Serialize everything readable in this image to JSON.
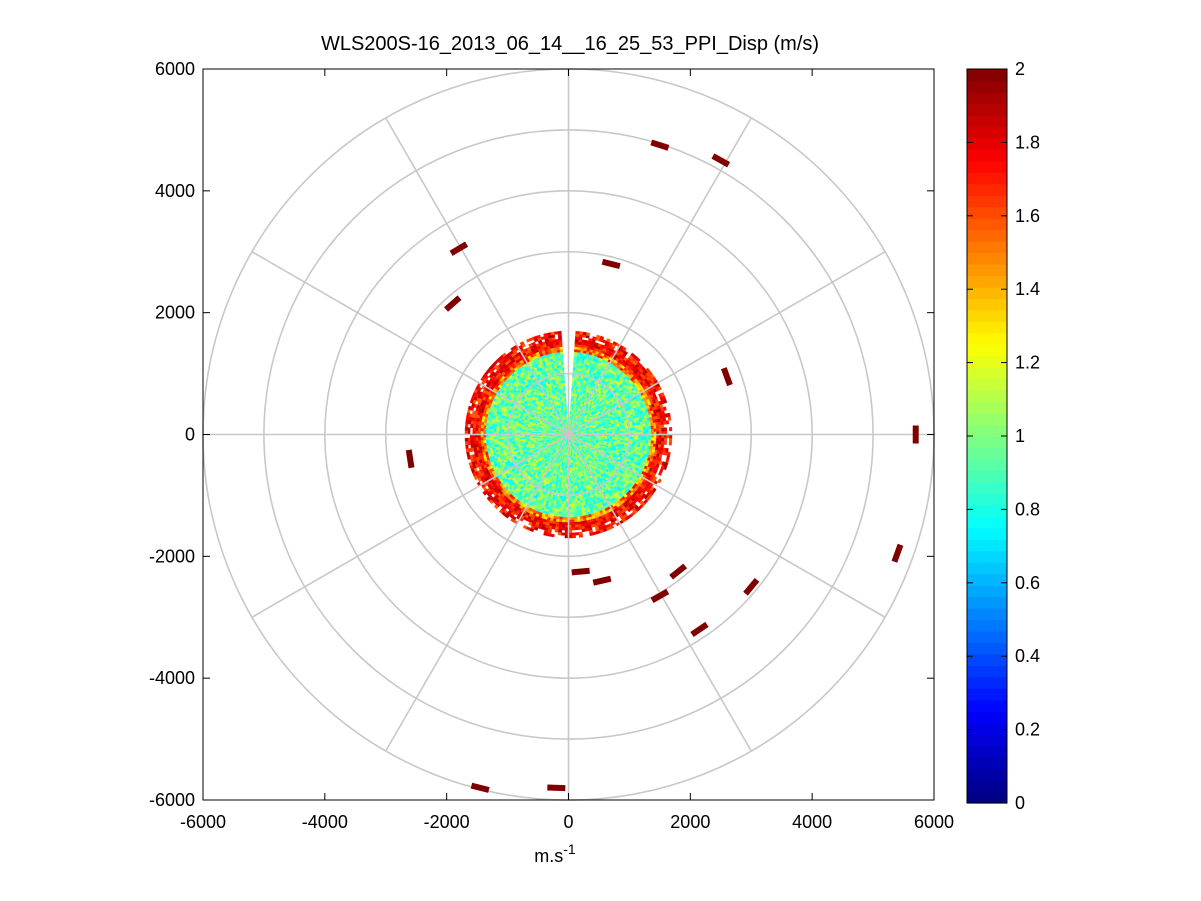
{
  "chart_data": {
    "type": "heatmap",
    "subtype": "polar-ppi",
    "title": "WLS200S-16_2013_06_14__16_25_53_PPI_Disp (m/s)",
    "xlabel": {
      "base": "m.s",
      "superscript": "-1"
    },
    "ylabel": "",
    "xlim": [
      -6000,
      6000
    ],
    "ylim": [
      -6000,
      6000
    ],
    "xticks": [
      -6000,
      -4000,
      -2000,
      0,
      2000,
      4000,
      6000
    ],
    "yticks": [
      6000,
      4000,
      2000,
      0,
      -2000,
      -4000,
      -6000
    ],
    "polar_grid": {
      "ring_radii": [
        1000,
        2000,
        3000,
        4000,
        5000,
        6000
      ],
      "spoke_angles_deg": [
        0,
        30,
        60,
        90,
        120,
        150,
        180,
        210,
        240,
        270,
        300,
        330
      ],
      "grid": true
    },
    "colorbar": {
      "colormap": "jet",
      "range": [
        0,
        2
      ],
      "ticks": [
        0,
        0.2,
        0.4,
        0.6,
        0.8,
        1,
        1.2,
        1.4,
        1.6,
        1.8,
        2
      ],
      "placement": "right"
    },
    "field": {
      "core_radius": 1700,
      "core_value_typical": 0.95,
      "rim_value": 1.9,
      "missing_sector_deg": [
        -3,
        3
      ]
    },
    "scattered_points": [
      {
        "x": 1500,
        "y": 4750,
        "value": 2
      },
      {
        "x": 2500,
        "y": 4500,
        "value": 2
      },
      {
        "x": 700,
        "y": 2800,
        "value": 2
      },
      {
        "x": -1800,
        "y": 3050,
        "value": 2
      },
      {
        "x": -1900,
        "y": 2150,
        "value": 2
      },
      {
        "x": 2600,
        "y": 950,
        "value": 2
      },
      {
        "x": 5700,
        "y": 0,
        "value": 2
      },
      {
        "x": -2600,
        "y": -400,
        "value": 2
      },
      {
        "x": 5400,
        "y": -1950,
        "value": 2
      },
      {
        "x": 3000,
        "y": -2500,
        "value": 2
      },
      {
        "x": 1800,
        "y": -2250,
        "value": 2
      },
      {
        "x": 550,
        "y": -2400,
        "value": 2
      },
      {
        "x": 200,
        "y": -2250,
        "value": 2
      },
      {
        "x": 1500,
        "y": -2650,
        "value": 2
      },
      {
        "x": 2150,
        "y": -3200,
        "value": 2
      },
      {
        "x": -1450,
        "y": -5800,
        "value": 2
      },
      {
        "x": -200,
        "y": -5800,
        "value": 2
      }
    ]
  }
}
